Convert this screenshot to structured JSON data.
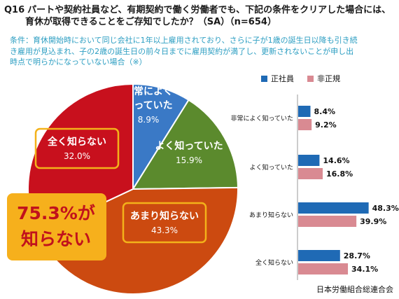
{
  "question": {
    "number": "Q16",
    "line1": "パートや契約社員など、有期契約で働く労働者でも、下記の条件をクリアした場合には、",
    "line2": "育休が取得できることをご存知でしたか？（SA）（n=654）"
  },
  "condition": {
    "line1": "条件：育休開始時において同じ会社に1年以上雇用されており、さらに子が1歳の誕生日以降も引き続",
    "line2": "き雇用が見込まれ、子の2歳の誕生日の前々日までに雇用契約が満了し、更新されないことが申し出",
    "line3": "時点で明らかになっていない場合（※）"
  },
  "callout": {
    "line1": "75.3%が",
    "line2": "知らない"
  },
  "source": "日本労働組合総連合会",
  "colors": {
    "pie": [
      "#3a79c6",
      "#5b8a2d",
      "#cc4a10",
      "#c8101d"
    ],
    "seishain": "#1f6ab5",
    "hiseiki": "#d98a92",
    "callout_bg": "#f6b01c",
    "callout_text": "#c1121c",
    "box_border": "#f3b21a"
  },
  "chart_data": [
    {
      "type": "pie",
      "slices": [
        {
          "label_lines": [
            "非常によく",
            "知っていた"
          ],
          "value": 8.9,
          "value_label": "8.9%"
        },
        {
          "label_lines": [
            "よく知っていた"
          ],
          "value": 15.9,
          "value_label": "15.9%"
        },
        {
          "label_lines": [
            "あまり知らない"
          ],
          "value": 43.3,
          "value_label": "43.3%"
        },
        {
          "label_lines": [
            "全く知らない"
          ],
          "value": 32.0,
          "value_label": "32.0%"
        }
      ]
    },
    {
      "type": "bar",
      "orientation": "horizontal",
      "legend_position": "top",
      "categories": [
        "非常によく知っていた",
        "よく知っていた",
        "あまり知らない",
        "全く知らない"
      ],
      "series": [
        {
          "name": "正社員",
          "values": [
            8.4,
            14.6,
            48.3,
            28.7
          ],
          "value_labels": [
            "8.4%",
            "14.6%",
            "48.3%",
            "28.7%"
          ]
        },
        {
          "name": "非正規",
          "values": [
            9.2,
            16.8,
            39.9,
            34.1
          ],
          "value_labels": [
            "9.2%",
            "16.8%",
            "39.9%",
            "34.1%"
          ]
        }
      ],
      "xlim": [
        0,
        60
      ]
    }
  ]
}
